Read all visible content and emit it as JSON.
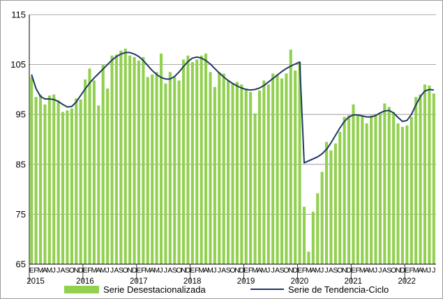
{
  "chart_data": {
    "type": "bar",
    "ylim": [
      65,
      115
    ],
    "yticks": [
      65,
      75,
      85,
      95,
      105,
      115
    ],
    "grid": true,
    "legend_position": "bottom",
    "colors": {
      "bars": "#92d050",
      "trend": "#1f3864"
    },
    "month_letters": [
      "E",
      "F",
      "M",
      "A",
      "M",
      "J",
      "J",
      "A",
      "S",
      "O",
      "N",
      "D"
    ],
    "years": [
      "2015",
      "2016",
      "2017",
      "2018",
      "2019",
      "2020",
      "2021",
      "2022"
    ],
    "series": [
      {
        "name": "Serie Desestacionalizada",
        "type": "bar",
        "values": [
          102.5,
          98.5,
          99.0,
          97.0,
          98.8,
          99.0,
          97.8,
          95.5,
          95.8,
          96.2,
          98.2,
          98.0,
          102.0,
          104.2,
          101.8,
          96.8,
          105.0,
          100.2,
          106.8,
          107.0,
          107.8,
          108.2,
          106.8,
          106.5,
          105.8,
          106.5,
          102.5,
          103.0,
          103.5,
          107.2,
          101.2,
          103.5,
          102.5,
          101.8,
          106.0,
          106.8,
          105.5,
          106.0,
          106.8,
          107.2,
          103.5,
          100.5,
          103.5,
          103.2,
          101.8,
          101.2,
          101.5,
          101.0,
          100.2,
          99.5,
          95.2,
          99.8,
          101.8,
          101.0,
          103.2,
          103.0,
          102.2,
          103.2,
          108.0,
          103.8,
          105.5,
          76.5,
          67.5,
          75.5,
          79.2,
          83.5,
          89.5,
          87.8,
          89.2,
          91.5,
          94.5,
          94.8,
          97.0,
          94.8,
          94.8,
          93.2,
          94.8,
          95.0,
          95.2,
          97.2,
          96.5,
          95.5,
          93.2,
          92.5,
          92.8,
          94.5,
          98.5,
          99.0,
          101.0,
          100.8,
          99.2
        ]
      },
      {
        "name": "Serie de Tendencia-Ciclo",
        "type": "line",
        "values": [
          103.0,
          100.2,
          98.6,
          98.1,
          98.1,
          98.0,
          97.6,
          97.0,
          96.5,
          96.6,
          97.5,
          98.8,
          100.1,
          101.3,
          102.3,
          103.2,
          104.1,
          105.0,
          105.9,
          106.6,
          107.1,
          107.4,
          107.4,
          107.1,
          106.6,
          105.8,
          104.8,
          103.8,
          103.0,
          102.4,
          102.1,
          102.1,
          102.6,
          103.5,
          104.6,
          105.6,
          106.3,
          106.5,
          106.3,
          105.8,
          105.1,
          104.2,
          103.3,
          102.5,
          101.8,
          101.2,
          100.7,
          100.3,
          100.0,
          99.9,
          100.0,
          100.3,
          100.8,
          101.5,
          102.2,
          102.9,
          103.6,
          104.2,
          104.7,
          105.1,
          105.5,
          85.3,
          85.7,
          86.1,
          86.5,
          87.1,
          88.0,
          89.3,
          90.8,
          92.3,
          93.6,
          94.5,
          94.9,
          94.9,
          94.7,
          94.5,
          94.5,
          94.8,
          95.3,
          95.7,
          95.8,
          95.3,
          94.4,
          93.6,
          93.8,
          95.0,
          96.9,
          98.6,
          99.7,
          100.0,
          99.9
        ]
      }
    ]
  }
}
